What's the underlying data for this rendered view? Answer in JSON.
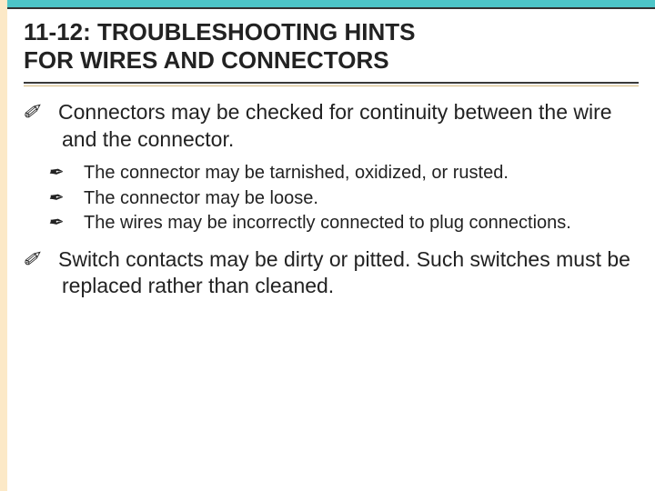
{
  "colors": {
    "top_accent": "#4dc5c8",
    "left_stripe": "#fce9c7",
    "rule_dark": "#3a3a3a",
    "rule_tan": "#d4b87a",
    "text": "#222222",
    "background": "#ffffff"
  },
  "typography": {
    "title_fontsize": 26,
    "l1_fontsize": 23,
    "l2_fontsize": 20,
    "font_family": "Arial"
  },
  "title_line1": "11-12: TROUBLESHOOTING HINTS",
  "title_line2": "FOR WIRES AND CONNECTORS",
  "bullets": {
    "l1_a": "Connectors may be checked for continuity between the wire and the connector.",
    "l2_a": "The connector may be tarnished, oxidized, or rusted.",
    "l2_b": "The connector may be loose.",
    "l2_c": "The wires may be incorrectly connected to plug connections.",
    "l1_b": "Switch contacts may be dirty or pitted. Such switches must be replaced rather than cleaned."
  },
  "bullet_glyph_l1": "✐",
  "bullet_glyph_l2": "✒"
}
